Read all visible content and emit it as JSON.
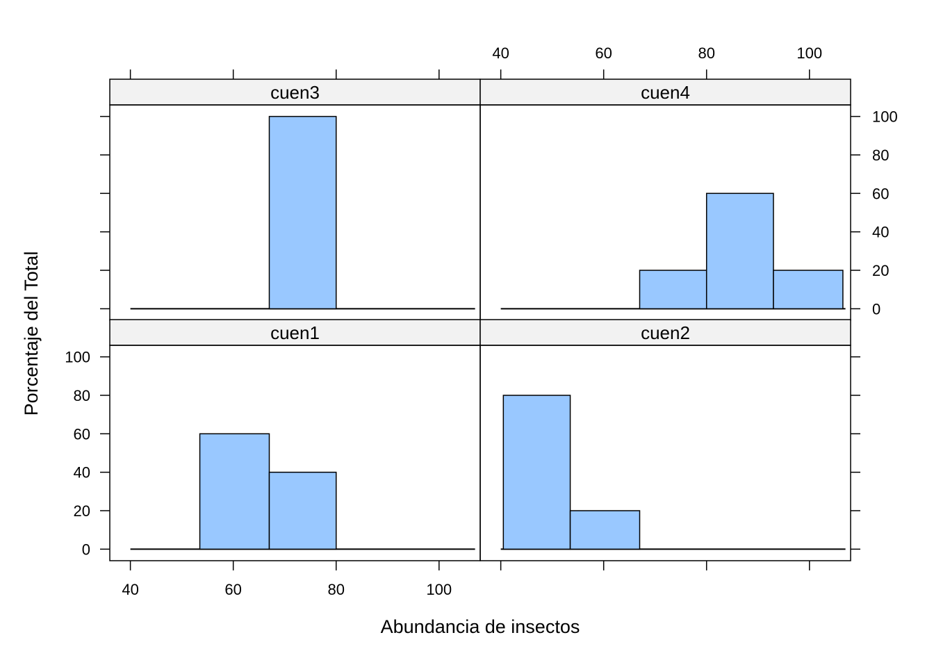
{
  "chart_data": {
    "type": "bar",
    "subtype": "histogram-trellis",
    "xlabel": "Abundancia de insectos",
    "ylabel": "Porcentaje del Total",
    "xlim": [
      36,
      108
    ],
    "ylim": [
      -6,
      106
    ],
    "x_ticks": [
      40,
      60,
      80,
      100
    ],
    "y_ticks": [
      0,
      20,
      40,
      60,
      80,
      100
    ],
    "bar_color": "#99C8FF",
    "strip_color": "#F2F2F2",
    "panels": [
      {
        "name": "cuen3",
        "row": 0,
        "col": 0,
        "bins": [
          {
            "x0": 67,
            "x1": 80,
            "value": 100
          }
        ]
      },
      {
        "name": "cuen4",
        "row": 0,
        "col": 1,
        "bins": [
          {
            "x0": 67,
            "x1": 80,
            "value": 20
          },
          {
            "x0": 80,
            "x1": 93,
            "value": 60
          },
          {
            "x0": 93,
            "x1": 106.5,
            "value": 20
          }
        ]
      },
      {
        "name": "cuen1",
        "row": 1,
        "col": 0,
        "bins": [
          {
            "x0": 53.5,
            "x1": 67,
            "value": 60
          },
          {
            "x0": 67,
            "x1": 80,
            "value": 40
          }
        ]
      },
      {
        "name": "cuen2",
        "row": 1,
        "col": 1,
        "bins": [
          {
            "x0": 40.5,
            "x1": 53.5,
            "value": 80
          },
          {
            "x0": 53.5,
            "x1": 67,
            "value": 20
          }
        ]
      }
    ]
  }
}
